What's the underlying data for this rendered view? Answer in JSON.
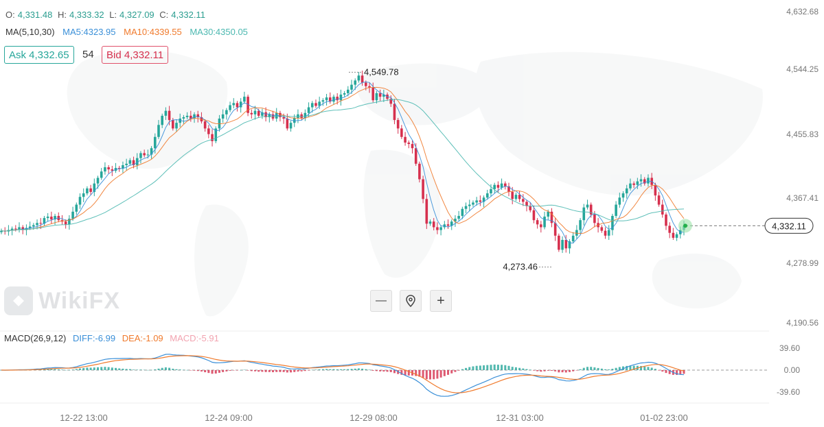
{
  "ohlc": {
    "open_label": "O:",
    "open": "4,331.48",
    "high_label": "H:",
    "high": "4,333.32",
    "low_label": "L:",
    "low": "4,327.09",
    "close_label": "C:",
    "close": "4,332.11"
  },
  "ma": {
    "label": "MA(5,10,30)",
    "ma5": "MA5:4323.95",
    "ma10": "MA10:4339.55",
    "ma30": "MA30:4350.05"
  },
  "quote": {
    "ask": "Ask 4,332.65",
    "spread": "54",
    "bid": "Bid 4,332.11"
  },
  "controls": {
    "zoom_out": "—",
    "zoom_in": "+"
  },
  "watermark": "WikiFX",
  "colors": {
    "up": "#26a69a",
    "down": "#d6304e",
    "ma5": "#3a8fd8",
    "ma10": "#f07a2c",
    "ma30": "#4bb8b0",
    "diff": "#3a8fd8",
    "dea": "#f07a2c",
    "macd": "#f2a3b0"
  },
  "chart_data": {
    "type": "candlestick",
    "price_axis_ticks": [
      "4,632.68",
      "4,544.25",
      "4,455.83",
      "4,367.41",
      "4,278.99",
      "4,190.56"
    ],
    "price_range": [
      4190.56,
      4632.68
    ],
    "x_tick_labels": [
      "12-22 13:00",
      "12-24 09:00",
      "12-29 08:00",
      "12-31 03:00",
      "01-02 23:00"
    ],
    "high_marker": "4,549.78",
    "low_marker": "4,273.46",
    "last_price": "4,332.11",
    "last_price_value": 4332.11,
    "high_value": 4549.78,
    "low_value": 4273.46,
    "closes": [
      4325,
      4324,
      4326,
      4328,
      4327,
      4330,
      4326,
      4329,
      4331,
      4333,
      4336,
      4335,
      4343,
      4345,
      4341,
      4346,
      4340,
      4338,
      4334,
      4342,
      4352,
      4362,
      4373,
      4378,
      4385,
      4380,
      4392,
      4400,
      4409,
      4415,
      4412,
      4410,
      4414,
      4413,
      4418,
      4420,
      4425,
      4418,
      4428,
      4435,
      4432,
      4433,
      4442,
      4458,
      4475,
      4488,
      4495,
      4482,
      4470,
      4478,
      4484,
      4486,
      4488,
      4484,
      4490,
      4486,
      4480,
      4470,
      4462,
      4452,
      4470,
      4484,
      4490,
      4496,
      4503,
      4506,
      4500,
      4508,
      4515,
      4492,
      4490,
      4495,
      4488,
      4493,
      4486,
      4490,
      4484,
      4492,
      4486,
      4484,
      4470,
      4478,
      4485,
      4490,
      4485,
      4492,
      4500,
      4506,
      4502,
      4508,
      4510,
      4514,
      4508,
      4515,
      4510,
      4518,
      4520,
      4525,
      4532,
      4538,
      4545,
      4535,
      4530,
      4528,
      4510,
      4520,
      4515,
      4518,
      4512,
      4505,
      4482,
      4470,
      4458,
      4450,
      4448,
      4442,
      4420,
      4398,
      4370,
      4335,
      4338,
      4330,
      4326,
      4330,
      4334,
      4332,
      4338,
      4342,
      4346,
      4356,
      4360,
      4362,
      4365,
      4368,
      4366,
      4372,
      4378,
      4384,
      4390,
      4386,
      4392,
      4388,
      4380,
      4370,
      4376,
      4370,
      4366,
      4360,
      4354,
      4340,
      4334,
      4330,
      4345,
      4352,
      4336,
      4318,
      4298,
      4312,
      4300,
      4310,
      4318,
      4326,
      4340,
      4358,
      4362,
      4348,
      4336,
      4330,
      4325,
      4318,
      4326,
      4346,
      4362,
      4372,
      4378,
      4385,
      4392,
      4390,
      4395,
      4398,
      4392,
      4400,
      4390,
      4375,
      4362,
      4348,
      4332,
      4322,
      4315,
      4320,
      4326,
      4332
    ],
    "macd_axis_ticks": [
      "39.60",
      "0.00",
      "-39.60"
    ],
    "macd_range": [
      -39.6,
      39.6
    ],
    "macd_label": "MACD(26,9,12)",
    "diff_label": "DIFF:-6.99",
    "dea_label": "DEA:-1.09",
    "macd_value_label": "MACD:-5.91"
  }
}
